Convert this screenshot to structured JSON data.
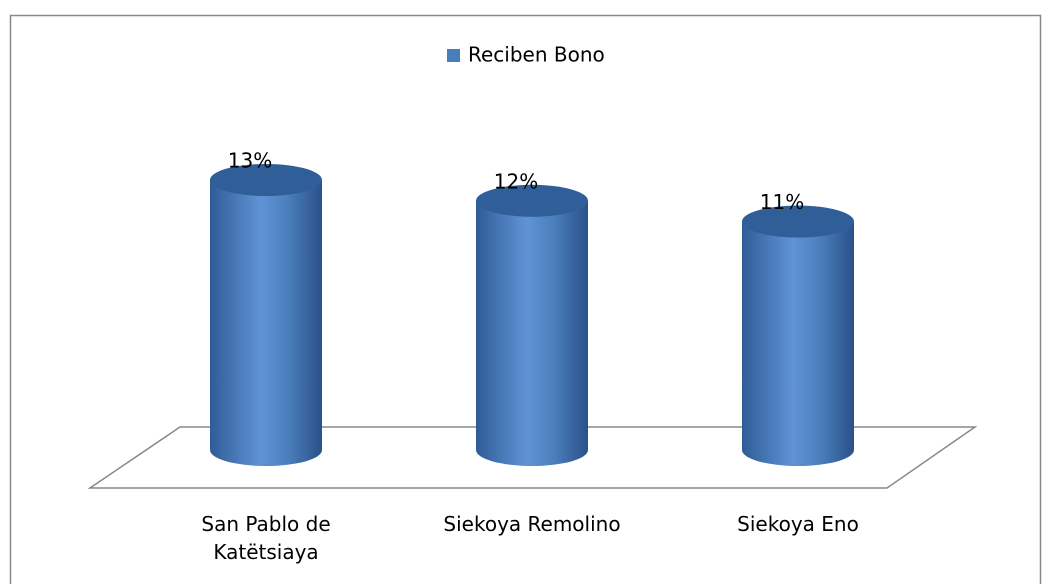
{
  "chart_data": {
    "type": "bar",
    "categories": [
      "San Pablo de Katëtsiaya",
      "Siekoya Remolino",
      "Siekoya Eno"
    ],
    "series": [
      {
        "name": "Reciben Bono",
        "color": "#4a7ebb",
        "values": [
          13,
          12,
          11
        ],
        "value_labels": [
          "13%",
          "12%",
          "11%"
        ]
      }
    ],
    "legend": "top"
  }
}
